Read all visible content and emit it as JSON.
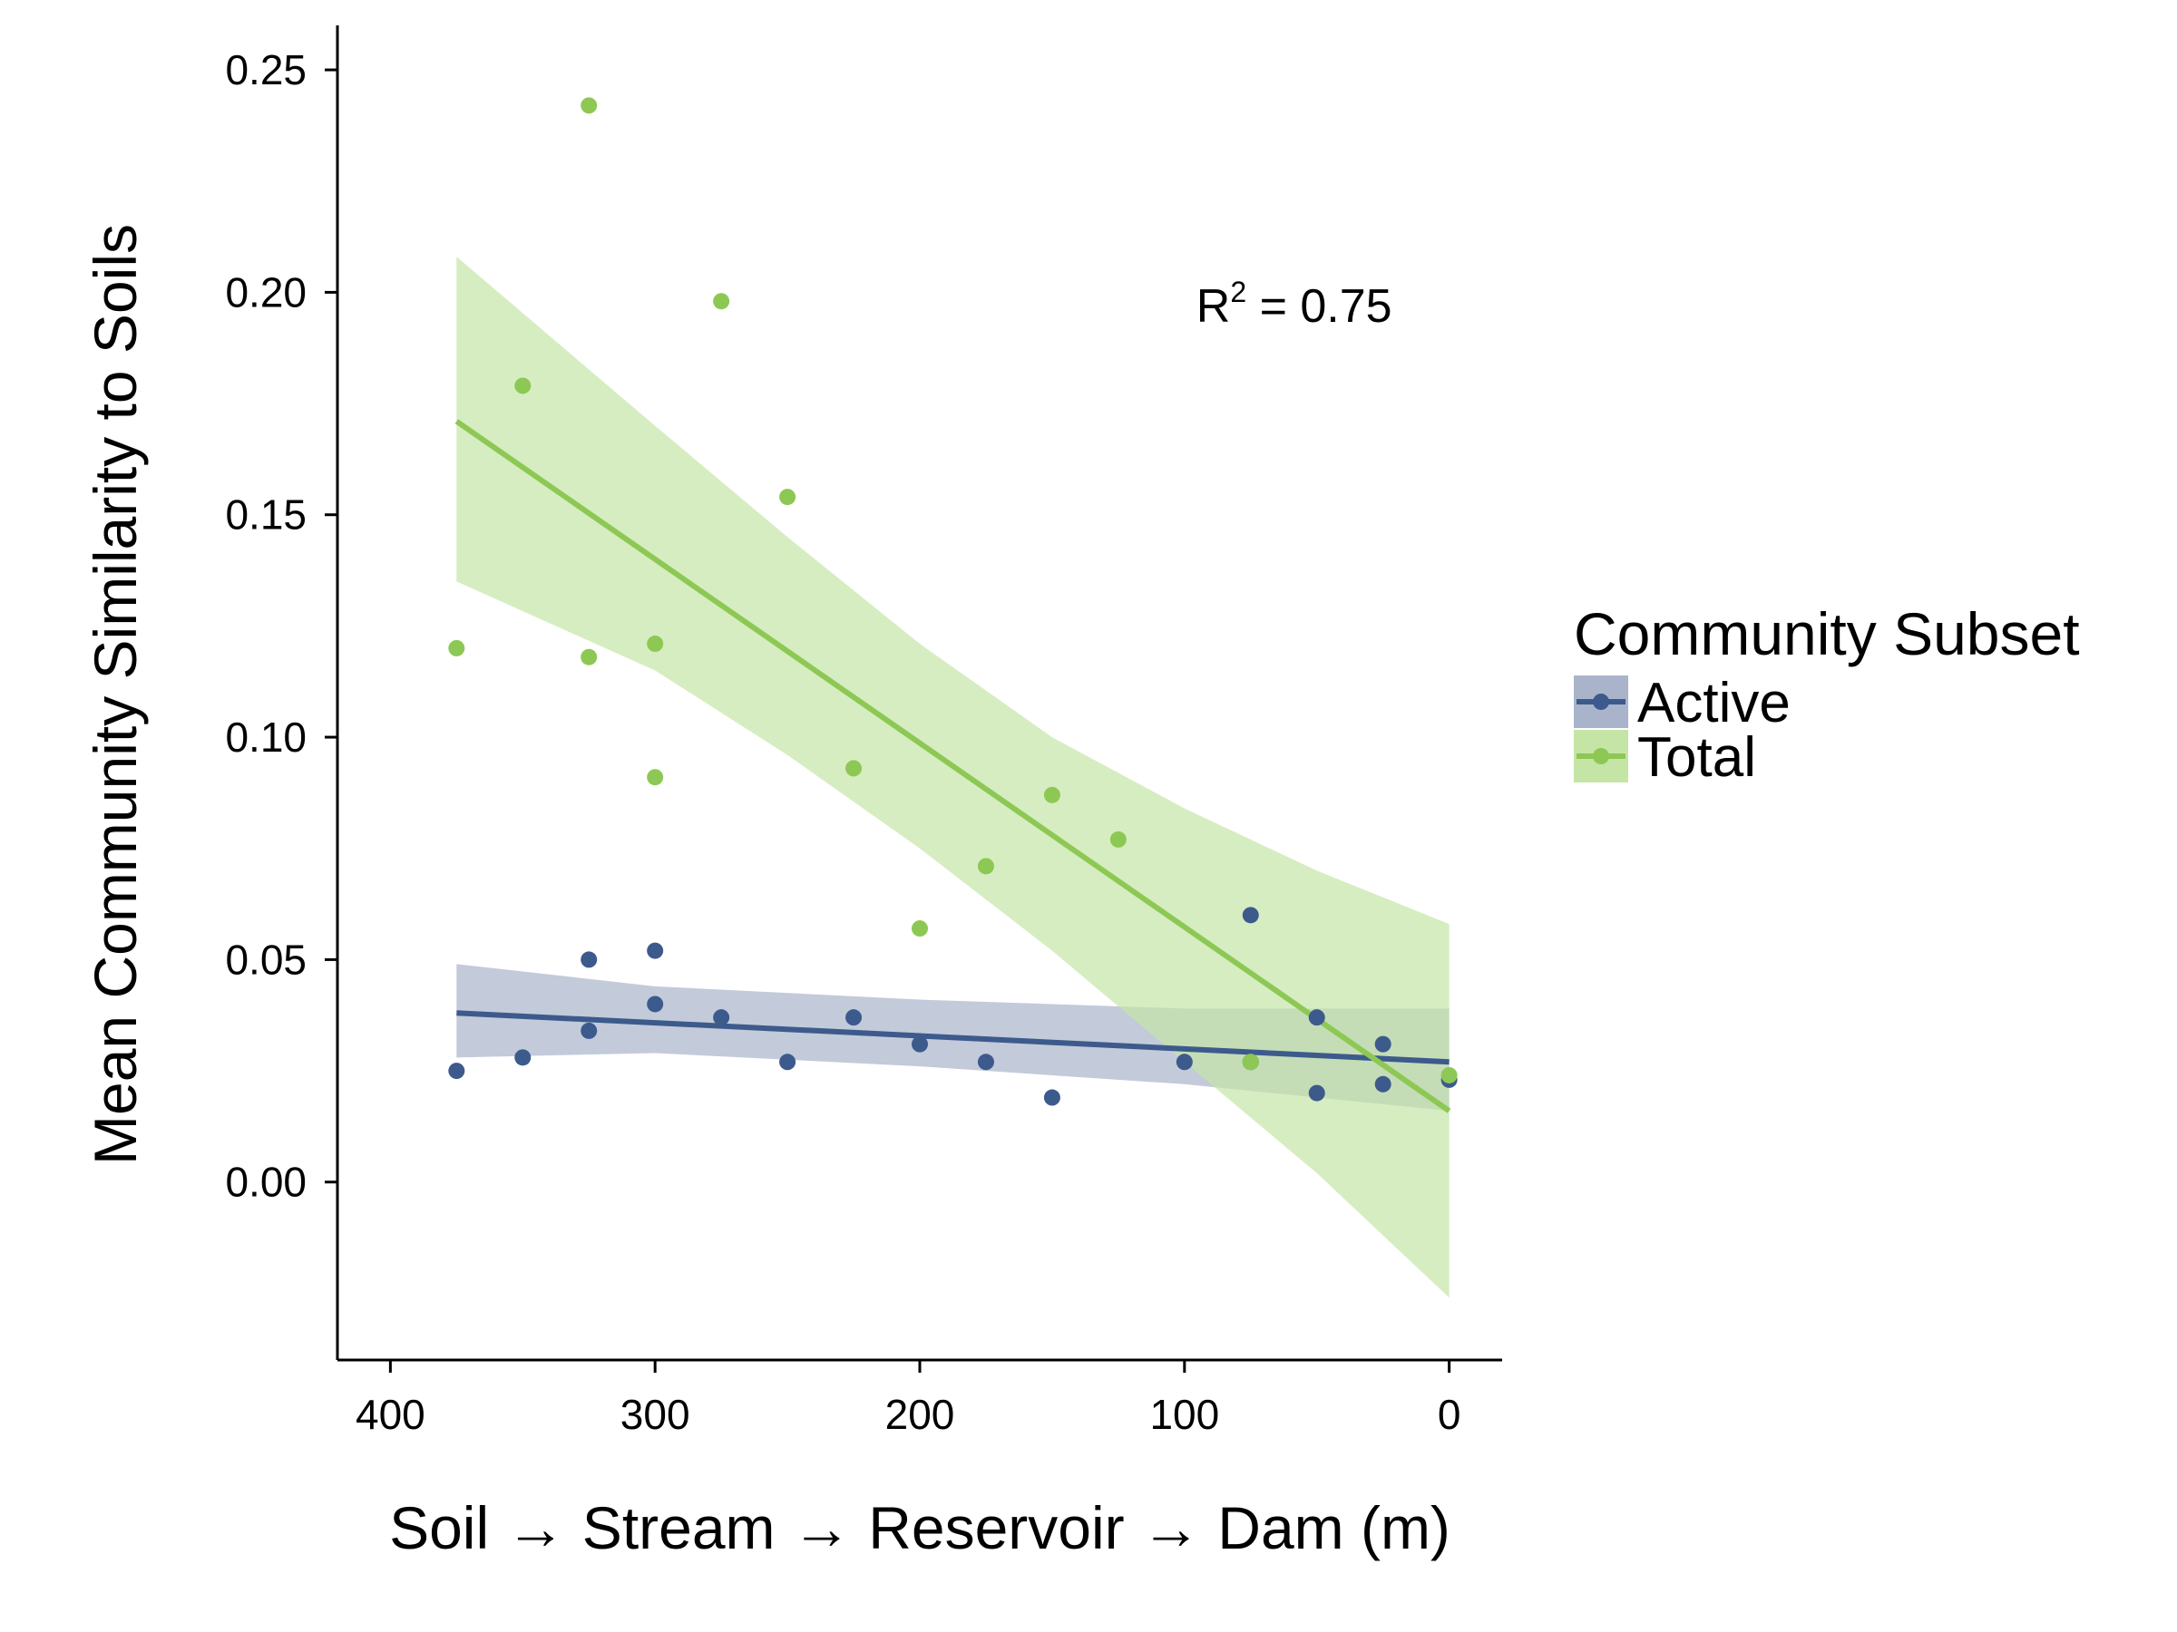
{
  "chart_data": {
    "type": "scatter",
    "title": "",
    "xlabel": "Soil → Stream → Reservoir → Dam (m)",
    "ylabel": "Mean Community Similarity to Soils",
    "xlim": [
      420,
      -20
    ],
    "ylim": [
      -0.04,
      0.26
    ],
    "x_reversed": true,
    "x_ticks": [
      400,
      300,
      200,
      100,
      0
    ],
    "x_tick_labels": [
      "400",
      "300",
      "200",
      "100",
      "0"
    ],
    "y_ticks": [
      0,
      0.05,
      0.1,
      0.15,
      0.2,
      0.25
    ],
    "y_tick_labels": [
      "0.00",
      "0.05",
      "0.10",
      "0.15",
      "0.20",
      "0.25"
    ],
    "grid": false,
    "legend": {
      "title": "Community Subset",
      "placement": "right"
    },
    "annotation": {
      "base": "R",
      "superscript": "2",
      "rest": " = 0.75",
      "x": 75,
      "y": 0.197
    },
    "series": [
      {
        "name": "Active",
        "color": "#3d5a8c",
        "band_color": "#a9b4cb",
        "points": [
          [
            375,
            0.025
          ],
          [
            350,
            0.028
          ],
          [
            325,
            0.05
          ],
          [
            325,
            0.034
          ],
          [
            300,
            0.052
          ],
          [
            300,
            0.04
          ],
          [
            275,
            0.037
          ],
          [
            250,
            0.027
          ],
          [
            225,
            0.037
          ],
          [
            200,
            0.031
          ],
          [
            175,
            0.027
          ],
          [
            150,
            0.019
          ],
          [
            100,
            0.027
          ],
          [
            75,
            0.06
          ],
          [
            75,
            0.027
          ],
          [
            50,
            0.037
          ],
          [
            50,
            0.02
          ],
          [
            25,
            0.031
          ],
          [
            25,
            0.022
          ],
          [
            0,
            0.023
          ]
        ],
        "fit": [
          [
            375,
            0.038
          ],
          [
            0,
            0.027
          ]
        ],
        "ci_upper": [
          [
            375,
            0.049
          ],
          [
            300,
            0.044
          ],
          [
            200,
            0.041
          ],
          [
            100,
            0.039
          ],
          [
            0,
            0.039
          ]
        ],
        "ci_lower": [
          [
            375,
            0.028
          ],
          [
            300,
            0.029
          ],
          [
            200,
            0.026
          ],
          [
            100,
            0.022
          ],
          [
            0,
            0.016
          ]
        ]
      },
      {
        "name": "Total",
        "color": "#8dc854",
        "band_color": "#c5e5a6",
        "points": [
          [
            375,
            0.12
          ],
          [
            350,
            0.179
          ],
          [
            325,
            0.242
          ],
          [
            325,
            0.118
          ],
          [
            300,
            0.121
          ],
          [
            300,
            0.091
          ],
          [
            275,
            0.198
          ],
          [
            250,
            0.154
          ],
          [
            225,
            0.093
          ],
          [
            200,
            0.057
          ],
          [
            175,
            0.071
          ],
          [
            150,
            0.087
          ],
          [
            125,
            0.077
          ],
          [
            75,
            0.027
          ],
          [
            0,
            0.024
          ]
        ],
        "fit": [
          [
            375,
            0.171
          ],
          [
            0,
            0.016
          ]
        ],
        "ci_upper": [
          [
            375,
            0.208
          ],
          [
            300,
            0.17
          ],
          [
            250,
            0.145
          ],
          [
            200,
            0.121
          ],
          [
            150,
            0.1
          ],
          [
            100,
            0.084
          ],
          [
            50,
            0.07
          ],
          [
            0,
            0.058
          ]
        ],
        "ci_lower": [
          [
            375,
            0.135
          ],
          [
            300,
            0.115
          ],
          [
            250,
            0.096
          ],
          [
            200,
            0.075
          ],
          [
            150,
            0.052
          ],
          [
            100,
            0.027
          ],
          [
            50,
            0.002
          ],
          [
            0,
            -0.026
          ]
        ]
      }
    ]
  }
}
